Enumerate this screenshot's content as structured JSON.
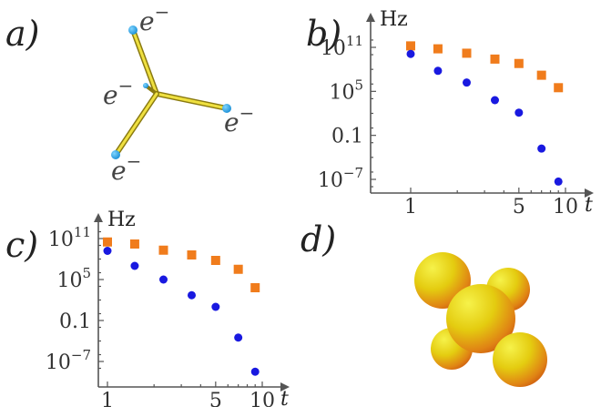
{
  "panels": {
    "a": "a)",
    "b": "b)",
    "c": "c)",
    "d": "d)"
  },
  "molecule_labels": {
    "top": "e",
    "left": "e",
    "right": "e",
    "bottom": "e",
    "superscript": "−"
  },
  "colors": {
    "series_square": "#f07c1c",
    "series_circle": "#1919e0",
    "stick": "#d4c020",
    "electron": "#29a8e8"
  },
  "chart_data": [
    {
      "panel": "b",
      "type": "scatter",
      "title": "",
      "xlabel": "t",
      "ylabel": "Hz",
      "yscale": "log",
      "xscale": "log",
      "xlim": [
        0.9,
        13
      ],
      "ylim_log10": [
        -8,
        12
      ],
      "yticks": [
        {
          "label": "10",
          "sup": "11"
        },
        {
          "label": "10",
          "sup": "5"
        },
        {
          "label": "0.1",
          "sup": ""
        },
        {
          "label": "10",
          "sup": "−7"
        }
      ],
      "xticks": [
        "1",
        "5",
        "10"
      ],
      "xtick_label": "t",
      "series": [
        {
          "marker": "square",
          "x": [
            1,
            1.5,
            2.3,
            3.5,
            5,
            7,
            9
          ],
          "log10_y": [
            11.2,
            10.8,
            10.2,
            9.4,
            8.8,
            7.2,
            5.5
          ]
        },
        {
          "marker": "circle",
          "x": [
            1,
            1.5,
            2.3,
            3.5,
            5,
            7,
            9
          ],
          "log10_y": [
            10.1,
            7.8,
            6.2,
            3.8,
            2.1,
            -2.8,
            -7.3
          ]
        }
      ]
    },
    {
      "panel": "c",
      "type": "scatter",
      "title": "",
      "xlabel": "t",
      "ylabel": "Hz",
      "yscale": "log",
      "xscale": "log",
      "xlim": [
        0.9,
        13
      ],
      "ylim_log10": [
        -9,
        12
      ],
      "yticks": [
        {
          "label": "10",
          "sup": "11"
        },
        {
          "label": "10",
          "sup": "5"
        },
        {
          "label": "0.1",
          "sup": ""
        },
        {
          "label": "10",
          "sup": "−7"
        }
      ],
      "xticks": [
        "1",
        "5",
        "10"
      ],
      "xtick_label": "t",
      "series": [
        {
          "marker": "square",
          "x": [
            1,
            1.5,
            2.3,
            3.5,
            5,
            7,
            9
          ],
          "log10_y": [
            10.5,
            10.2,
            9.3,
            8.6,
            7.8,
            6.5,
            3.8
          ]
        },
        {
          "marker": "circle",
          "x": [
            1,
            1.5,
            2.3,
            3.5,
            5,
            7,
            9
          ],
          "log10_y": [
            9.2,
            7.0,
            5.0,
            2.7,
            1.0,
            -3.5,
            -8.5
          ]
        }
      ]
    }
  ]
}
